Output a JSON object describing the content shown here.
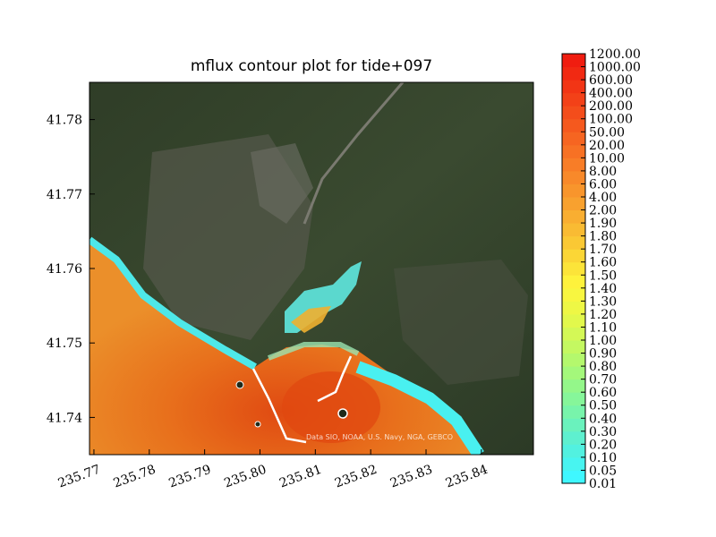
{
  "chart_data": {
    "type": "heatmap",
    "title": "mflux contour plot for tide+097",
    "xlabel": "",
    "ylabel": "",
    "xlim": [
      235.7692,
      235.8494
    ],
    "ylim": [
      41.735,
      41.785
    ],
    "x_ticks": [
      235.77,
      235.78,
      235.79,
      235.8,
      235.81,
      235.82,
      235.83,
      235.84
    ],
    "x_tick_labels": [
      "235.77",
      "235.78",
      "235.79",
      "235.80",
      "235.81",
      "235.82",
      "235.83",
      "235.84"
    ],
    "y_ticks": [
      41.74,
      41.75,
      41.76,
      41.77,
      41.78
    ],
    "y_tick_labels": [
      "41.74",
      "41.75",
      "41.76",
      "41.77",
      "41.78"
    ],
    "background": "satellite imagery",
    "credit_text": "Data SIO, NOAA, U.S. Navy, NGA, GEBCO",
    "colorbar": {
      "levels": [
        "0.01",
        "0.05",
        "0.10",
        "0.20",
        "0.30",
        "0.40",
        "0.50",
        "0.60",
        "0.70",
        "0.80",
        "0.90",
        "1.00",
        "1.10",
        "1.20",
        "1.30",
        "1.40",
        "1.50",
        "1.60",
        "1.70",
        "1.80",
        "1.90",
        "2.00",
        "4.00",
        "6.00",
        "8.00",
        "10.00",
        "20.00",
        "50.00",
        "100.00",
        "200.00",
        "400.00",
        "600.00",
        "1000.00",
        "1200.00"
      ],
      "colors": [
        "#3ff7ff",
        "#48f4f0",
        "#52f1e0",
        "#5ef0cf",
        "#6af2bd",
        "#78f4ab",
        "#86f69a",
        "#94f78a",
        "#a4f87b",
        "#b4f86d",
        "#c4f861",
        "#d4f856",
        "#e2f84c",
        "#eef745",
        "#f8f640",
        "#fef23c",
        "#fce439",
        "#fbd636",
        "#fac834",
        "#f9bb33",
        "#f9ae31",
        "#f8a12f",
        "#f8952c",
        "#f8892a",
        "#f87d27",
        "#f77124",
        "#f66521",
        "#f5591e",
        "#f44d1b",
        "#f34118",
        "#f23515",
        "#f12912",
        "#f01d10"
      ]
    }
  }
}
